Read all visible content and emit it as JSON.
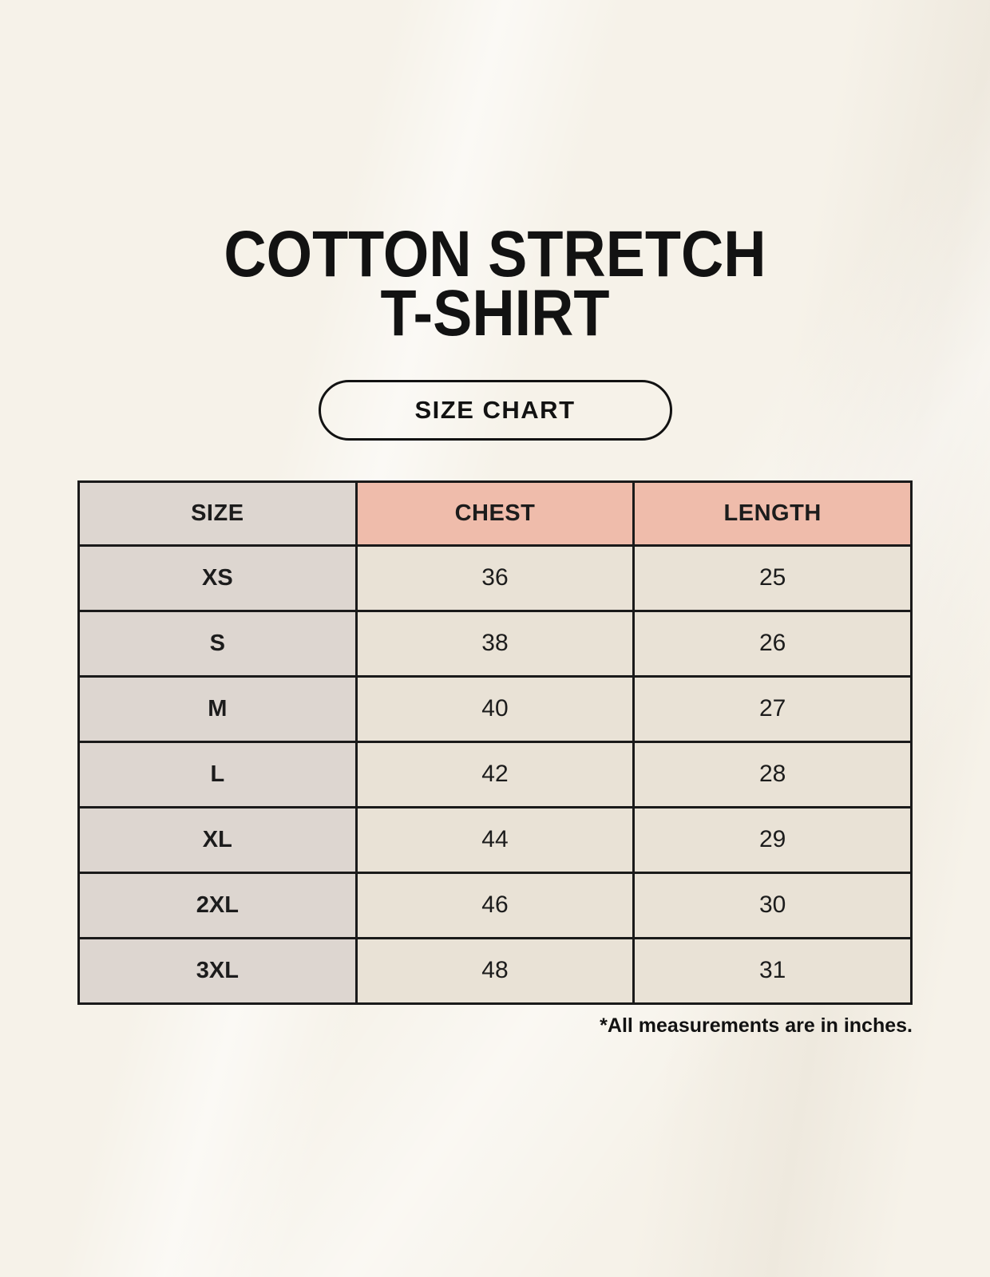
{
  "page": {
    "title_line1": "COTTON STRETCH",
    "title_line2": "T-SHIRT",
    "badge_label": "SIZE CHART",
    "footnote": "*All measurements are in inches."
  },
  "chart_data": {
    "type": "table",
    "title": "Cotton Stretch T-Shirt Size Chart",
    "columns": [
      "SIZE",
      "CHEST",
      "LENGTH"
    ],
    "rows": [
      [
        "XS",
        "36",
        "25"
      ],
      [
        "S",
        "38",
        "26"
      ],
      [
        "M",
        "40",
        "27"
      ],
      [
        "L",
        "42",
        "28"
      ],
      [
        "XL",
        "44",
        "29"
      ],
      [
        "2XL",
        "46",
        "30"
      ],
      [
        "3XL",
        "48",
        "31"
      ]
    ],
    "units": "inches"
  },
  "colors": {
    "background": "#f6f2e9",
    "size_column_bg": "#ddd6d0",
    "header_accent_bg": "#efbcab",
    "data_cell_bg": "#e9e2d6",
    "border": "#1a1a1a",
    "text": "#1c1c1c"
  }
}
